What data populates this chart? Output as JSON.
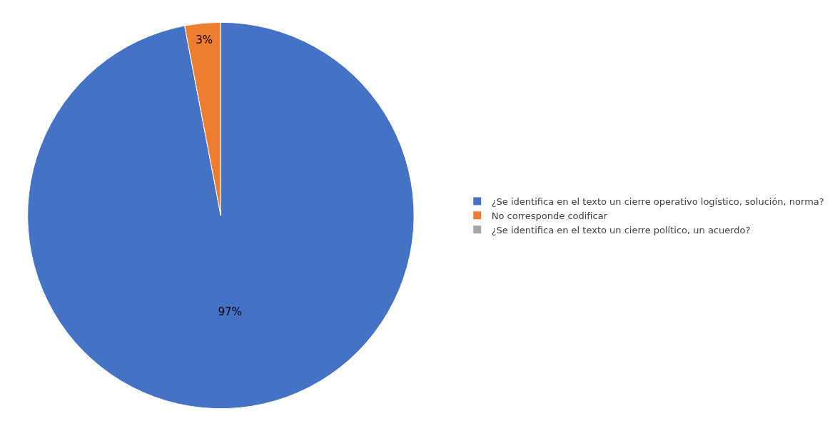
{
  "chart_data": {
    "type": "pie",
    "categories": [
      "¿Se identifica en el texto un cierre operativo logístico, solución, norma?",
      "No corresponde codificar",
      "¿Se identifica en el texto un cierre político, un acuerdo?"
    ],
    "values": [
      97,
      3,
      0
    ],
    "value_labels": [
      "97%",
      "3%",
      null
    ],
    "colors": [
      "#4472c4",
      "#ed7d31",
      "#a5a5a5"
    ],
    "legend": "right"
  }
}
